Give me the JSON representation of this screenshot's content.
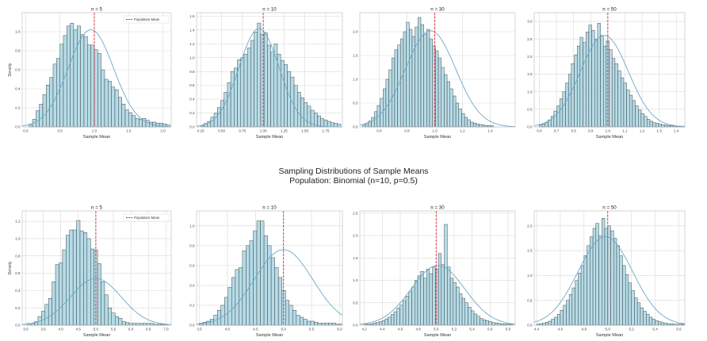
{
  "suptitle": {
    "line1": "Sampling Distributions of Sample Means",
    "line2": "Population: Binomial (n=10, p=0.5)"
  },
  "colors": {
    "bar_fill": "#add8e6",
    "bar_edge": "#3a3a3a",
    "kde": "#6aa9c8",
    "mean_line": "#d62728",
    "grid": "#d9d9d9",
    "frame": "#bbbbbb"
  },
  "legend": {
    "label": "Population Mean",
    "placement": "top-right"
  },
  "chart_data": [
    {
      "type": "bar",
      "title": "n = 5",
      "xlabel": "Sample Mean",
      "ylabel": "Density",
      "xlim": [
        -0.05,
        2.12
      ],
      "ylim": [
        0,
        1.2
      ],
      "xticks": [
        0.0,
        0.5,
        1.0,
        1.5,
        2.0
      ],
      "xticklabels": [
        "0.0",
        "0.5",
        "1.0",
        "1.5",
        "2.0"
      ],
      "yticks": [
        0,
        0.2,
        0.4,
        0.6,
        0.8,
        1.0
      ],
      "yticklabels": [
        "0.0",
        "0.2",
        "0.4",
        "0.6",
        "0.8",
        "1.0"
      ],
      "bins": {
        "start": 0.05,
        "width": 0.05,
        "values": [
          0.02,
          0.08,
          0.17,
          0.24,
          0.34,
          0.44,
          0.52,
          0.66,
          0.72,
          0.87,
          0.96,
          1.06,
          1.09,
          1.02,
          1.06,
          0.97,
          0.95,
          0.86,
          0.86,
          0.81,
          0.77,
          0.6,
          0.5,
          0.48,
          0.42,
          0.39,
          0.31,
          0.24,
          0.18,
          0.15,
          0.12,
          0.09,
          0.08,
          0.09,
          0.07,
          0.05,
          0.05,
          0.04,
          0.04,
          0.03,
          0.02
        ]
      },
      "kde": {
        "mu": 0.95,
        "sigma": 0.33,
        "peak": 1.02
      },
      "mean": 1.0
    },
    {
      "type": "bar",
      "title": "n = 10",
      "xlabel": "Sample Mean",
      "ylabel": "",
      "xlim": [
        0.2,
        1.95
      ],
      "ylim": [
        0,
        1.65
      ],
      "xticks": [
        0.25,
        0.5,
        0.75,
        1.0,
        1.25,
        1.5,
        1.75
      ],
      "xticklabels": [
        "0.25",
        "0.50",
        "0.75",
        "1.00",
        "1.25",
        "1.50",
        "1.75"
      ],
      "yticks": [
        0,
        0.2,
        0.4,
        0.6,
        0.8,
        1.0,
        1.2,
        1.4,
        1.6
      ],
      "yticklabels": [
        "0.0",
        "0.2",
        "0.4",
        "0.6",
        "0.8",
        "1.0",
        "1.2",
        "1.4",
        "1.6"
      ],
      "bins": {
        "start": 0.25,
        "width": 0.04,
        "values": [
          0.02,
          0.05,
          0.08,
          0.14,
          0.2,
          0.28,
          0.38,
          0.5,
          0.64,
          0.8,
          0.85,
          0.97,
          1.0,
          1.05,
          1.14,
          1.25,
          1.37,
          1.5,
          1.34,
          1.36,
          1.18,
          1.08,
          1.2,
          1.05,
          0.96,
          0.9,
          0.8,
          0.72,
          0.6,
          0.5,
          0.42,
          0.35,
          0.3,
          0.24,
          0.2,
          0.16,
          0.12,
          0.1,
          0.08,
          0.06,
          0.05,
          0.04
        ]
      },
      "kde": {
        "mu": 0.95,
        "sigma": 0.24,
        "peak": 1.42
      },
      "mean": 1.0
    },
    {
      "type": "bar",
      "title": "n = 30",
      "xlabel": "Sample Mean",
      "ylabel": "",
      "xlim": [
        0.46,
        1.58
      ],
      "ylim": [
        0,
        2.4
      ],
      "xticks": [
        0.6,
        0.8,
        1.0,
        1.2,
        1.4
      ],
      "xticklabels": [
        "0.6",
        "0.8",
        "1.0",
        "1.2",
        "1.4"
      ],
      "yticks": [
        0,
        0.5,
        1.0,
        1.5,
        2.0
      ],
      "yticklabels": [
        "0.0",
        "0.5",
        "1.0",
        "1.5",
        "2.0"
      ],
      "bins": {
        "start": 0.48,
        "width": 0.021,
        "values": [
          0.05,
          0.08,
          0.12,
          0.2,
          0.32,
          0.45,
          0.6,
          0.8,
          1.0,
          1.2,
          1.45,
          1.62,
          1.72,
          1.85,
          2.0,
          2.2,
          2.05,
          1.9,
          2.1,
          2.3,
          2.15,
          1.95,
          2.05,
          1.85,
          1.7,
          1.6,
          1.45,
          1.25,
          1.1,
          0.95,
          0.8,
          0.65,
          0.5,
          0.38,
          0.28,
          0.2,
          0.15,
          0.1,
          0.08,
          0.06,
          0.05,
          0.04,
          0.03,
          0.03,
          0.02
        ]
      },
      "kde": {
        "mu": 0.97,
        "sigma": 0.18,
        "peak": 2.02
      },
      "mean": 1.0
    },
    {
      "type": "bar",
      "title": "n = 50",
      "xlabel": "Sample Mean",
      "ylabel": "",
      "xlim": [
        0.57,
        1.45
      ],
      "ylim": [
        0,
        3.25
      ],
      "xticks": [
        0.6,
        0.7,
        0.8,
        0.9,
        1.0,
        1.1,
        1.2,
        1.3,
        1.4
      ],
      "xticklabels": [
        "0.6",
        "0.7",
        "0.8",
        "0.9",
        "1.0",
        "1.1",
        "1.2",
        "1.3",
        "1.4"
      ],
      "yticks": [
        0,
        0.5,
        1.0,
        1.5,
        2.0,
        2.5,
        3.0
      ],
      "yticklabels": [
        "0.0",
        "0.5",
        "1.0",
        "1.5",
        "2.0",
        "2.5",
        "3.0"
      ],
      "bins": {
        "start": 0.6,
        "width": 0.017,
        "values": [
          0.05,
          0.08,
          0.12,
          0.2,
          0.3,
          0.45,
          0.6,
          0.8,
          1.0,
          1.25,
          1.5,
          1.8,
          2.05,
          2.3,
          2.55,
          2.4,
          2.7,
          2.9,
          2.75,
          2.5,
          2.95,
          2.6,
          2.3,
          2.45,
          2.2,
          1.95,
          1.8,
          1.6,
          1.4,
          1.25,
          1.05,
          0.9,
          0.75,
          0.6,
          0.48,
          0.38,
          0.3,
          0.22,
          0.16,
          0.12,
          0.1,
          0.08,
          0.06,
          0.05,
          0.04,
          0.03,
          0.03,
          0.02,
          0.02,
          0.02
        ]
      },
      "kde": {
        "mu": 0.98,
        "sigma": 0.14,
        "peak": 2.6
      },
      "mean": 1.0
    },
    {
      "type": "bar",
      "title": "n = 5",
      "xlabel": "Sample Mean",
      "ylabel": "Density",
      "xlim": [
        2.9,
        7.15
      ],
      "ylim": [
        0,
        1.32
      ],
      "xticks": [
        3.0,
        3.5,
        4.0,
        4.5,
        5.0,
        5.5,
        6.0,
        6.5,
        7.0
      ],
      "xticklabels": [
        "3.0",
        "3.5",
        "4.0",
        "4.5",
        "5.0",
        "5.5",
        "6.0",
        "6.5",
        "7.0"
      ],
      "yticks": [
        0,
        0.2,
        0.4,
        0.6,
        0.8,
        1.0,
        1.2
      ],
      "yticklabels": [
        "0.0",
        "0.2",
        "0.4",
        "0.6",
        "0.8",
        "1.0",
        "1.2"
      ],
      "bins": {
        "start": 3.05,
        "width": 0.1,
        "values": [
          0.02,
          0.02,
          0.04,
          0.1,
          0.16,
          0.24,
          0.31,
          0.5,
          0.7,
          0.72,
          0.87,
          1.04,
          1.1,
          1.1,
          1.21,
          1.09,
          1.07,
          1.0,
          0.88,
          0.87,
          0.71,
          0.5,
          0.35,
          0.2,
          0.14,
          0.1,
          0.08,
          0.04,
          0.03,
          0.02,
          0.02,
          0.02,
          0.02,
          0.02,
          0.02,
          0.02,
          0.01,
          0.01,
          0.01,
          0.01
        ]
      },
      "kde": {
        "mu": 5.0,
        "sigma": 0.72,
        "peak": 0.54
      },
      "mean": 5.0
    },
    {
      "type": "bar",
      "title": "n = 10",
      "xlabel": "Sample Mean",
      "ylabel": "",
      "xlim": [
        3.45,
        6.05
      ],
      "ylim": [
        0,
        1.15
      ],
      "xticks": [
        3.5,
        4.0,
        4.5,
        5.0,
        5.5,
        6.0
      ],
      "xticklabels": [
        "3.5",
        "4.0",
        "4.5",
        "5.0",
        "5.5",
        "6.0"
      ],
      "yticks": [
        0,
        0.2,
        0.4,
        0.6,
        0.8,
        1.0
      ],
      "yticklabels": [
        "0.0",
        "0.2",
        "0.4",
        "0.6",
        "0.8",
        "1.0"
      ],
      "bins": {
        "start": 3.5,
        "width": 0.064,
        "values": [
          0.02,
          0.03,
          0.04,
          0.06,
          0.1,
          0.15,
          0.2,
          0.28,
          0.38,
          0.48,
          0.56,
          0.58,
          0.75,
          0.8,
          0.85,
          0.95,
          1.05,
          1.05,
          0.9,
          0.8,
          0.68,
          0.58,
          0.48,
          0.35,
          0.25,
          0.2,
          0.15,
          0.1,
          0.08,
          0.06,
          0.04,
          0.04,
          0.03,
          0.02,
          0.02,
          0.02,
          0.02,
          0.02,
          0.01,
          0.01
        ]
      },
      "kde": {
        "mu": 5.0,
        "sigma": 0.52,
        "peak": 0.76
      },
      "mean": 5.0
    },
    {
      "type": "bar",
      "title": "n = 30",
      "xlabel": "Sample Mean",
      "ylabel": "",
      "xlim": [
        4.15,
        5.88
      ],
      "ylim": [
        0,
        2.55
      ],
      "xticks": [
        4.2,
        4.4,
        4.6,
        4.8,
        5.0,
        5.2,
        5.4,
        5.6,
        5.8
      ],
      "xticklabels": [
        "4.2",
        "4.4",
        "4.6",
        "4.8",
        "5.0",
        "5.2",
        "5.4",
        "5.6",
        "5.8"
      ],
      "yticks": [
        0,
        0.5,
        1.0,
        1.5,
        2.0,
        2.5
      ],
      "yticklabels": [
        "0.0",
        "0.5",
        "1.0",
        "1.5",
        "2.0",
        "2.5"
      ],
      "bins": {
        "start": 4.2,
        "width": 0.033,
        "values": [
          0.02,
          0.02,
          0.03,
          0.05,
          0.06,
          0.08,
          0.1,
          0.14,
          0.18,
          0.24,
          0.3,
          0.38,
          0.45,
          0.55,
          0.65,
          0.75,
          0.85,
          1.0,
          1.1,
          1.2,
          1.05,
          1.25,
          1.15,
          1.3,
          1.25,
          1.6,
          1.35,
          2.25,
          1.3,
          1.05,
          0.95,
          0.85,
          0.7,
          0.6,
          0.5,
          0.4,
          0.32,
          0.25,
          0.2,
          0.15,
          0.12,
          0.1,
          0.08,
          0.06,
          0.05,
          0.04,
          0.03,
          0.03,
          0.02,
          0.02
        ]
      },
      "kde": {
        "mu": 5.02,
        "sigma": 0.3,
        "peak": 1.33
      },
      "mean": 5.0
    },
    {
      "type": "bar",
      "title": "n = 50",
      "xlabel": "Sample Mean",
      "ylabel": "",
      "xlim": [
        4.38,
        5.65
      ],
      "ylim": [
        0,
        2.3
      ],
      "xticks": [
        4.4,
        4.6,
        4.8,
        5.0,
        5.2,
        5.4,
        5.6
      ],
      "xticklabels": [
        "4.4",
        "4.6",
        "4.8",
        "5.0",
        "5.2",
        "5.4",
        "5.6"
      ],
      "yticks": [
        0,
        0.5,
        1.0,
        1.5,
        2.0
      ],
      "yticklabels": [
        "0.0",
        "0.5",
        "1.0",
        "1.5",
        "2.0"
      ],
      "bins": {
        "start": 4.4,
        "width": 0.025,
        "values": [
          0.02,
          0.03,
          0.04,
          0.06,
          0.08,
          0.12,
          0.16,
          0.22,
          0.3,
          0.4,
          0.5,
          0.62,
          0.75,
          0.9,
          1.05,
          1.2,
          1.4,
          1.6,
          1.78,
          1.95,
          2.05,
          1.8,
          2.15,
          1.95,
          2.0,
          1.9,
          1.75,
          1.6,
          1.4,
          1.2,
          1.02,
          0.85,
          0.7,
          0.55,
          0.45,
          0.35,
          0.28,
          0.22,
          0.16,
          0.12,
          0.09,
          0.07,
          0.05,
          0.04,
          0.03,
          0.03,
          0.02,
          0.02,
          0.02,
          0.02
        ]
      },
      "kde": {
        "mu": 4.98,
        "sigma": 0.23,
        "peak": 1.78
      },
      "mean": 5.0
    }
  ]
}
